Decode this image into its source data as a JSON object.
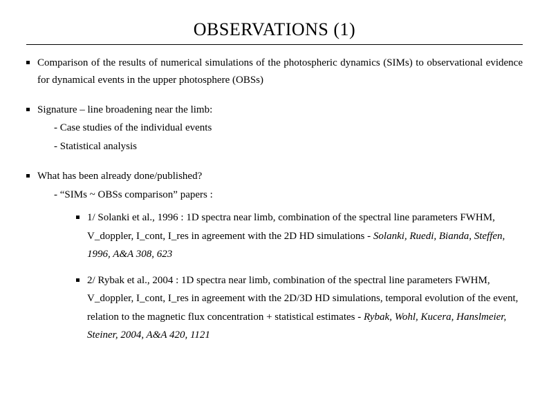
{
  "title": "OBSERVATIONS (1)",
  "bullet1": "Comparison of the results of numerical simulations of the photospheric dynamics (SIMs) to observational evidence for dynamical events in the upper photosphere (OBSs)",
  "bullet2": "Signature – line broadening near the limb:",
  "bullet2_sub1": "- Case studies of the individual events",
  "bullet2_sub2": "- Statistical analysis",
  "bullet3": "What has been already done/published?",
  "bullet3_sub1": "- “SIMs ~ OBSs comparison” papers :",
  "ref1_text": "1/ Solanki et al., 1996 : 1D spectra near limb, combination of the spectral line parameters FWHM, V_doppler, I_cont, I_res in agreement with the 2D HD simulations - ",
  "ref1_cite": "Solanki, Ruedi, Bianda, Steffen, 1996, A&A 308, 623",
  "ref2_text": "2/ Rybak et al., 2004 : 1D spectra near limb, combination of the spectral line parameters FWHM, V_doppler, I_cont, I_res in agreement with the 2D/3D HD simulations, temporal evolution of the event, relation to the magnetic flux concentration + statistical estimates - ",
  "ref2_cite": "Rybak, Wohl, Kucera, Hanslmeier, Steiner, 2004, A&A 420, 1121"
}
